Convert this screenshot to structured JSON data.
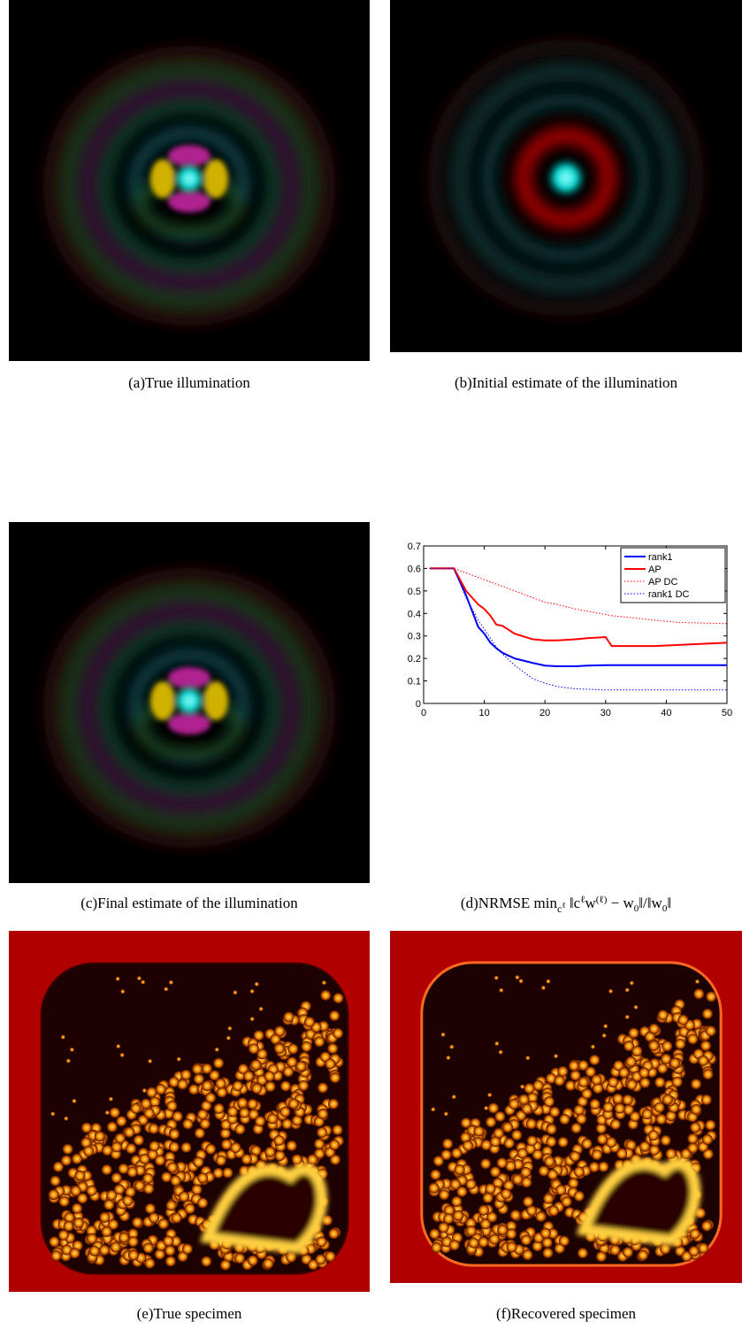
{
  "captions": [
    "(a)True illumination",
    "(b)Initial estimate of the illumination",
    "(c)Final estimate of the illumination",
    [
      "(d)NRMSE min",
      "c",
      "ℓ",
      " ‖c",
      "ℓ",
      "w",
      "(ℓ)",
      " − w",
      "0",
      "‖/‖w",
      "0",
      "‖"
    ],
    "(e)True specimen",
    "(f)Recovered specimen"
  ],
  "chart_data": {
    "type": "line",
    "x": [
      1,
      5,
      7,
      9,
      10,
      11,
      12,
      13,
      15,
      18,
      20,
      22,
      25,
      27,
      30,
      31,
      33,
      38,
      42,
      50
    ],
    "series": [
      {
        "name": "rank1",
        "color": "#0000ff",
        "linestyle": "solid",
        "values": [
          0.6,
          0.6,
          0.48,
          0.34,
          0.31,
          0.27,
          0.245,
          0.225,
          0.2,
          0.18,
          0.168,
          0.165,
          0.165,
          0.168,
          0.17,
          0.17,
          0.17,
          0.17,
          0.17,
          0.17
        ]
      },
      {
        "name": "AP",
        "color": "#ff0000",
        "linestyle": "solid",
        "values": [
          0.6,
          0.6,
          0.5,
          0.44,
          0.42,
          0.39,
          0.35,
          0.345,
          0.31,
          0.285,
          0.28,
          0.28,
          0.285,
          0.29,
          0.295,
          0.255,
          0.255,
          0.255,
          0.26,
          0.27
        ]
      },
      {
        "name": "AP DC",
        "color": "#ff0000",
        "linestyle": "dotted",
        "values": [
          0.6,
          0.6,
          0.58,
          0.56,
          0.55,
          0.54,
          0.53,
          0.52,
          0.5,
          0.47,
          0.45,
          0.44,
          0.42,
          0.41,
          0.395,
          0.39,
          0.385,
          0.37,
          0.36,
          0.355
        ]
      },
      {
        "name": "rank1 DC",
        "color": "#0000ff",
        "linestyle": "dotted",
        "values": [
          0.6,
          0.6,
          0.47,
          0.37,
          0.33,
          0.29,
          0.25,
          0.22,
          0.17,
          0.11,
          0.09,
          0.075,
          0.065,
          0.063,
          0.06,
          0.06,
          0.06,
          0.06,
          0.06,
          0.06
        ]
      }
    ],
    "xlim": [
      0,
      50
    ],
    "xticks": [
      0,
      10,
      20,
      30,
      40,
      50
    ],
    "ylim": [
      0,
      0.7
    ],
    "yticks": [
      0,
      0.1,
      0.2,
      0.3,
      0.4,
      0.5,
      0.6,
      0.7
    ],
    "legend": "upper right",
    "grid": false
  }
}
